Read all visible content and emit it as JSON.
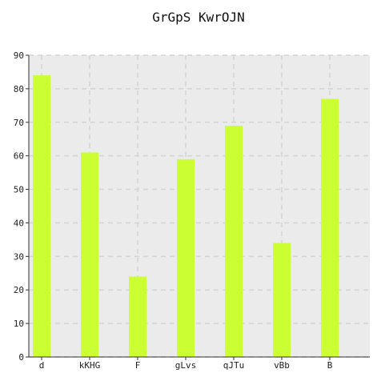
{
  "chart_data": {
    "type": "bar",
    "title": "GrGpS KwrOJN",
    "xlabel": "",
    "ylabel": "",
    "categories": [
      "d",
      "kKHG",
      "F",
      "gLvs",
      "qJTu",
      "vBb",
      "B"
    ],
    "values": [
      84,
      61,
      24,
      59,
      69,
      34,
      77
    ],
    "ylim": [
      0,
      90
    ],
    "yticks": [
      0,
      10,
      20,
      30,
      40,
      50,
      60,
      70,
      80,
      90
    ],
    "grid": true,
    "legend": "none",
    "colors": {
      "bar": "#ccff33",
      "plot_background": "#ebebeb",
      "grid": "#d4d4d4",
      "axis": "#333333"
    }
  }
}
